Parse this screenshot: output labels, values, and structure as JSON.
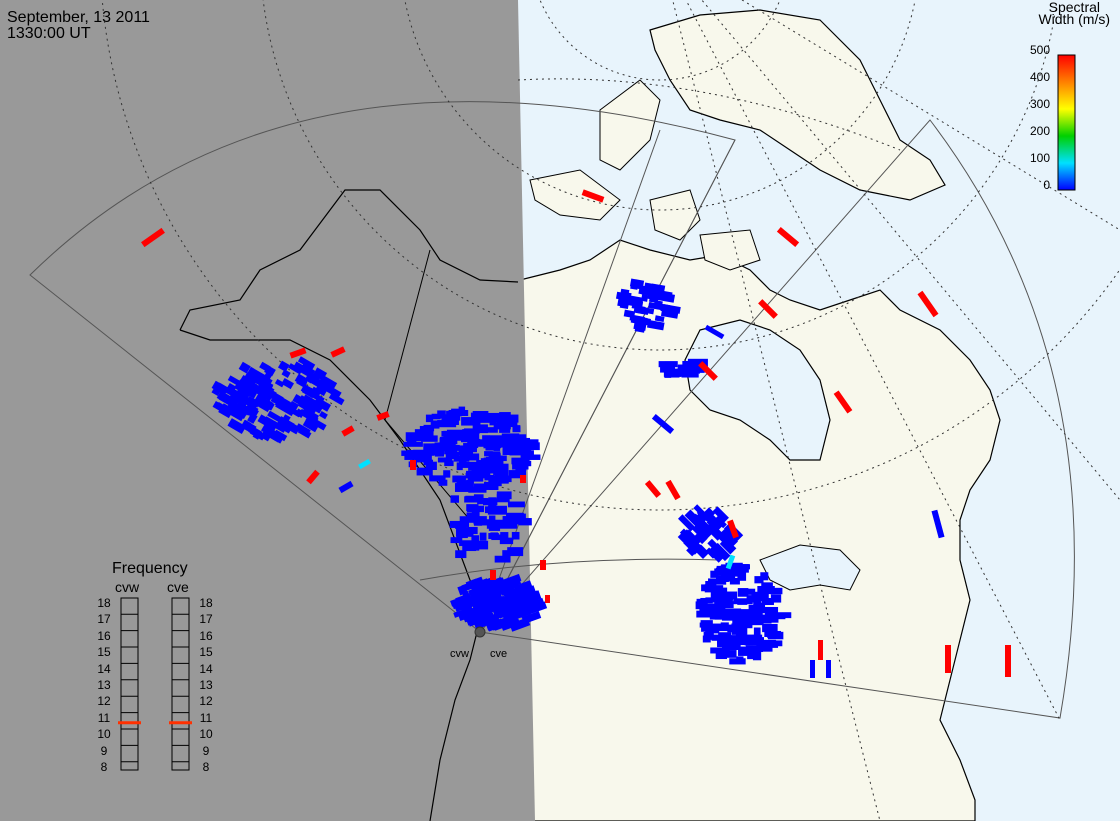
{
  "header": {
    "date": "September, 13 2011",
    "time": "1330:00 UT"
  },
  "colorbar": {
    "title_line1": "Spectral",
    "title_line2": "Width (m/s)",
    "ticks": [
      "500",
      "400",
      "300",
      "200",
      "100",
      "0"
    ],
    "range": [
      0,
      500
    ],
    "colors": [
      "#0000ff",
      "#00e0ff",
      "#00d000",
      "#ffff00",
      "#ff8000",
      "#ff0000"
    ]
  },
  "frequency_panel": {
    "title": "Frequency",
    "left_label": "cvw",
    "right_label": "cve",
    "ticks": [
      "18",
      "17",
      "16",
      "15",
      "14",
      "13",
      "12",
      "11",
      "10",
      "9",
      "8"
    ],
    "cvw_value": 10.7,
    "cve_value": 10.7,
    "marker_color": "#ff3000"
  },
  "radar_sites": {
    "west_label": "cvw",
    "east_label": "cve"
  },
  "colors": {
    "night_shade": "#999999",
    "day_land": "#f8f8ec",
    "ocean": "#e8f4fc",
    "scatter_low": "#0000ff",
    "scatter_high": "#ff0000",
    "scatter_mid": "#00e0ff"
  }
}
